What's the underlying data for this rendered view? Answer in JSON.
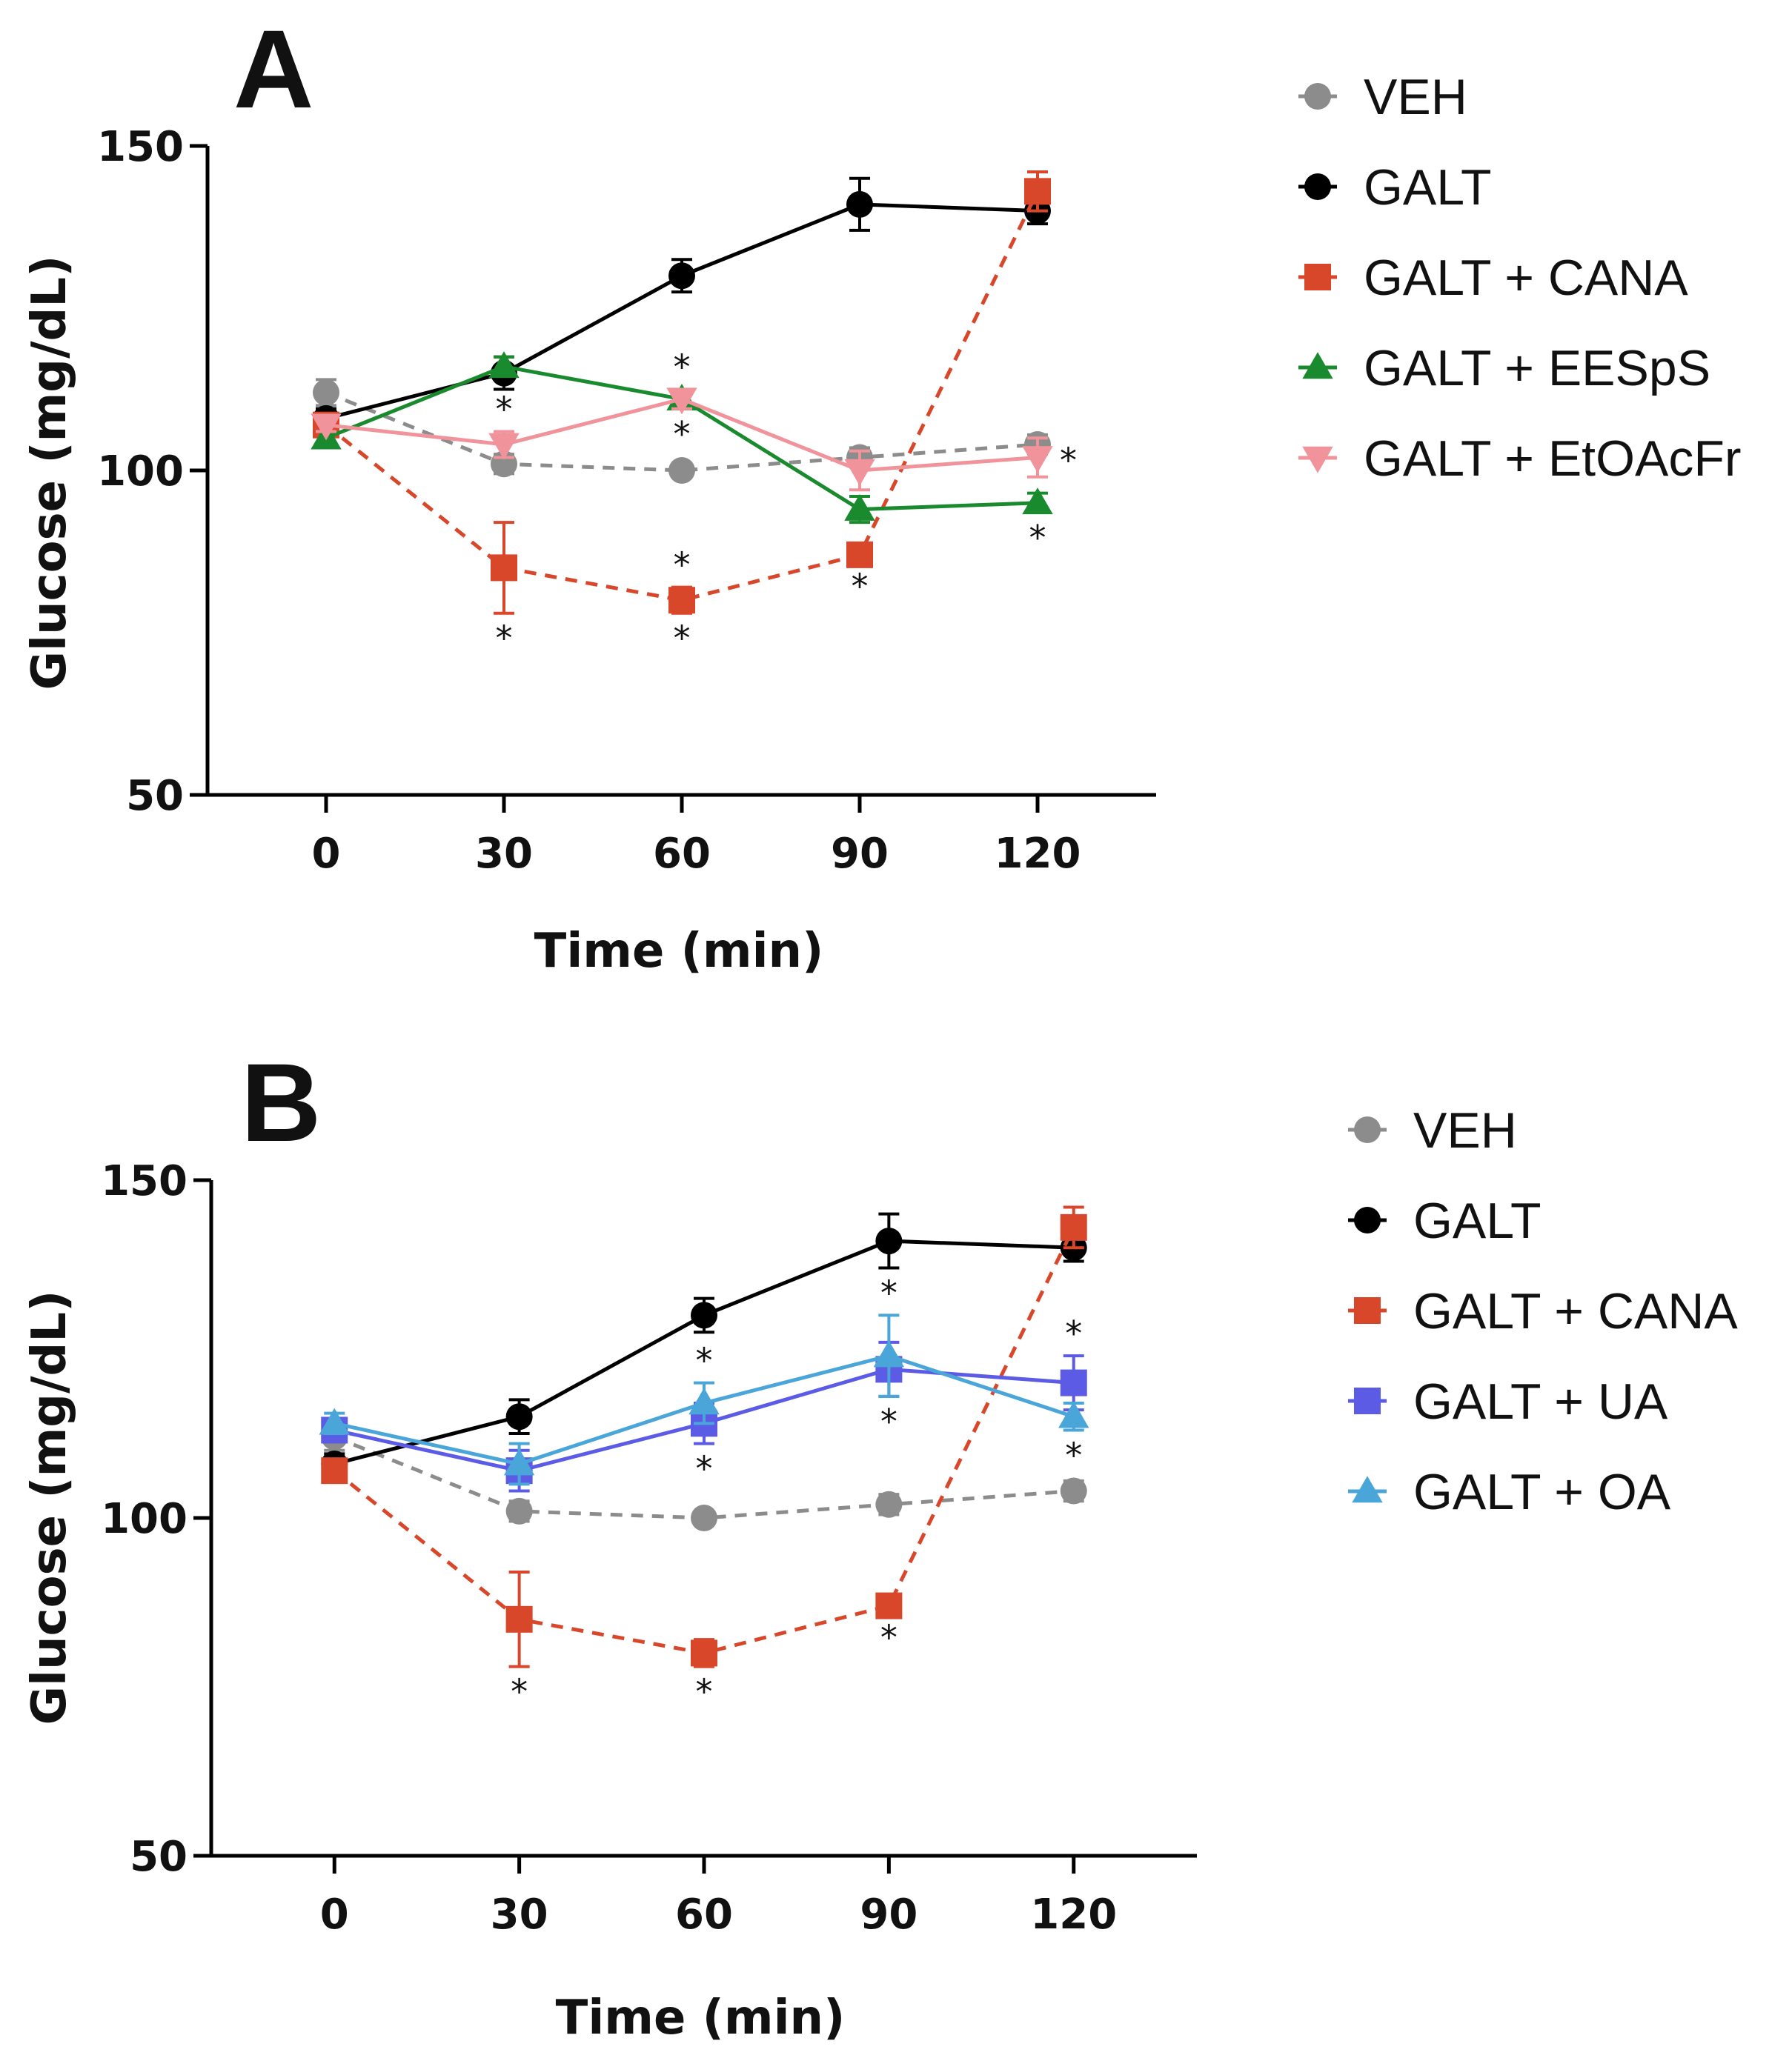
{
  "chart_data": [
    {
      "panel": "A",
      "type": "line",
      "xlabel": "Time (min)",
      "ylabel": "Glucose (mg/dL)",
      "x": [
        0,
        30,
        60,
        90,
        120
      ],
      "x_ticks": [
        "0",
        "30",
        "60",
        "90",
        "120"
      ],
      "y_ticks": [
        "50",
        "100",
        "150"
      ],
      "xlim": [
        -20,
        140
      ],
      "ylim": [
        50,
        150
      ],
      "legend_position": "right",
      "series": [
        {
          "name": "VEH",
          "color": "#8c8c8c",
          "marker": "circle",
          "dash": true,
          "values": [
            112,
            101,
            100,
            102,
            104
          ],
          "errors": [
            2,
            1.5,
            1,
            1.5,
            1.5
          ],
          "stars_above": [],
          "stars_below": []
        },
        {
          "name": "GALT",
          "color": "#000000",
          "marker": "circle",
          "dash": false,
          "values": [
            108,
            115,
            130,
            141,
            140
          ],
          "errors": [
            1.5,
            2.5,
            2.5,
            4,
            2
          ],
          "stars_above": [],
          "stars_below": []
        },
        {
          "name": "GALT + CANA",
          "color": "#d9472b",
          "marker": "square",
          "dash": true,
          "values": [
            107,
            85,
            80,
            87,
            143
          ],
          "errors": [
            1,
            7,
            2,
            1,
            3
          ],
          "stars_above": [
            60
          ],
          "stars_below": [
            30,
            60,
            90
          ]
        },
        {
          "name": "GALT + EESpS",
          "color": "#1a8a2e",
          "marker": "triangle-up",
          "dash": false,
          "values": [
            105,
            116,
            111,
            94,
            95
          ],
          "errors": [
            1,
            1.5,
            1.5,
            2,
            1.5
          ],
          "stars_above": [
            60
          ],
          "stars_below": [
            120
          ]
        },
        {
          "name": "GALT + EtOAcFr",
          "color": "#f0939a",
          "marker": "triangle-down",
          "dash": false,
          "values": [
            107,
            104,
            111,
            100,
            102
          ],
          "errors": [
            1,
            2,
            1.5,
            3,
            3
          ],
          "stars_above": [
            30
          ],
          "stars_below": [
            60
          ],
          "stars_right": [
            120
          ]
        }
      ]
    },
    {
      "panel": "B",
      "type": "line",
      "xlabel": "Time (min)",
      "ylabel": "Glucose (mg/dL)",
      "x": [
        0,
        30,
        60,
        90,
        120
      ],
      "x_ticks": [
        "0",
        "30",
        "60",
        "90",
        "120"
      ],
      "y_ticks": [
        "50",
        "100",
        "150"
      ],
      "xlim": [
        -20,
        140
      ],
      "ylim": [
        50,
        150
      ],
      "legend_position": "right",
      "series": [
        {
          "name": "VEH",
          "color": "#8c8c8c",
          "marker": "circle",
          "dash": true,
          "values": [
            112,
            101,
            100,
            102,
            104
          ],
          "errors": [
            2,
            1.5,
            1,
            1.5,
            1.5
          ],
          "stars_above": [],
          "stars_below": []
        },
        {
          "name": "GALT",
          "color": "#000000",
          "marker": "circle",
          "dash": false,
          "values": [
            108,
            115,
            130,
            141,
            140
          ],
          "errors": [
            1.5,
            2.5,
            2.5,
            4,
            2
          ],
          "stars_above": [],
          "stars_below": []
        },
        {
          "name": "GALT + CANA",
          "color": "#d9472b",
          "marker": "square",
          "dash": true,
          "values": [
            107,
            85,
            80,
            87,
            143
          ],
          "errors": [
            1,
            7,
            2,
            1,
            3
          ],
          "stars_above": [],
          "stars_below": [
            30,
            60,
            90
          ]
        },
        {
          "name": "GALT + UA",
          "color": "#5b5be6",
          "marker": "square",
          "dash": false,
          "values": [
            113,
            107,
            114,
            122,
            120
          ],
          "errors": [
            1.5,
            3,
            3,
            4,
            4
          ],
          "stars_above": [
            120
          ],
          "stars_below": [
            60,
            90
          ]
        },
        {
          "name": "GALT + OA",
          "color": "#4aa6d9",
          "marker": "triangle-up",
          "dash": false,
          "values": [
            114,
            108,
            117,
            124,
            115
          ],
          "errors": [
            1.5,
            3,
            3,
            6,
            2
          ],
          "stars_above": [
            60,
            90
          ],
          "stars_below": [
            120
          ]
        }
      ]
    }
  ]
}
